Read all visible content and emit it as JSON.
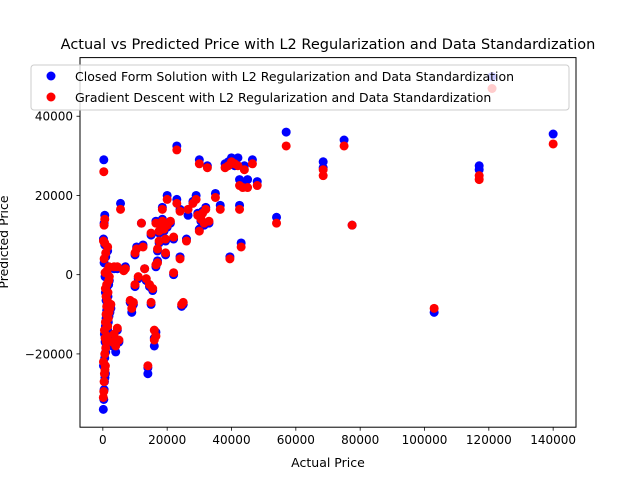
{
  "chart_data": {
    "type": "scatter",
    "title": "Actual vs Predicted Price with L2 Regularization and Data Standardization",
    "xlabel": "Actual Price",
    "ylabel": "Predicted Price",
    "xlim": [
      -7100,
      147100
    ],
    "ylim": [
      -38500,
      54800
    ],
    "xticks": [
      0,
      20000,
      40000,
      60000,
      80000,
      100000,
      120000,
      140000
    ],
    "xtick_labels": [
      "0",
      "20000",
      "40000",
      "60000",
      "80000",
      "100000",
      "120000",
      "140000"
    ],
    "yticks": [
      -20000,
      0,
      20000,
      40000
    ],
    "ytick_labels": [
      "−20000",
      "0",
      "20000",
      "40000"
    ],
    "grid": false,
    "legend_position": "top-right",
    "series": [
      {
        "name": "Closed Form Solution with L2 Regularization and Data Standardization",
        "color": "#0000ff",
        "points": [
          [
            150,
            -34000
          ],
          [
            300,
            -31500
          ],
          [
            400,
            -29000
          ],
          [
            500,
            -27000
          ],
          [
            650,
            -26000
          ],
          [
            800,
            -25000
          ],
          [
            200,
            -23000
          ],
          [
            600,
            -21000
          ],
          [
            900,
            -19500
          ],
          [
            1100,
            -18000
          ],
          [
            700,
            -17000
          ],
          [
            1300,
            -16500
          ],
          [
            500,
            -15000
          ],
          [
            1500,
            -14000
          ],
          [
            800,
            -13000
          ],
          [
            1700,
            -12000
          ],
          [
            1000,
            -11000
          ],
          [
            1900,
            -10500
          ],
          [
            2200,
            -9500
          ],
          [
            1200,
            -9000
          ],
          [
            2500,
            -8500
          ],
          [
            1400,
            -7500
          ],
          [
            1000,
            -6500
          ],
          [
            1600,
            -5500
          ],
          [
            800,
            -4500
          ],
          [
            1200,
            -3500
          ],
          [
            1800,
            -2500
          ],
          [
            2000,
            -1500
          ],
          [
            700,
            -500
          ],
          [
            1300,
            500
          ],
          [
            1900,
            1500
          ],
          [
            400,
            3000
          ],
          [
            900,
            4500
          ],
          [
            1500,
            6000
          ],
          [
            600,
            7500
          ],
          [
            200,
            9000
          ],
          [
            400,
            13000
          ],
          [
            600,
            15000
          ],
          [
            300,
            29000
          ],
          [
            3000,
            -18000
          ],
          [
            3500,
            -16000
          ],
          [
            4000,
            -19500
          ],
          [
            4500,
            -14000
          ],
          [
            5000,
            -17000
          ],
          [
            3500,
            1500
          ],
          [
            4500,
            1500
          ],
          [
            5500,
            18000
          ],
          [
            6500,
            1500
          ],
          [
            7000,
            2000
          ],
          [
            8500,
            -7000
          ],
          [
            9000,
            -9500
          ],
          [
            9500,
            -7500
          ],
          [
            10000,
            -3000
          ],
          [
            10000,
            5000
          ],
          [
            10500,
            7000
          ],
          [
            11000,
            -1000
          ],
          [
            12000,
            13000
          ],
          [
            12500,
            7500
          ],
          [
            13000,
            1500
          ],
          [
            13500,
            -1500
          ],
          [
            14000,
            -25000
          ],
          [
            14000,
            -23500
          ],
          [
            14500,
            -3000
          ],
          [
            15000,
            -7500
          ],
          [
            15500,
            -4000
          ],
          [
            15000,
            10000
          ],
          [
            16000,
            -18000
          ],
          [
            16000,
            -16000
          ],
          [
            16500,
            -14500
          ],
          [
            16500,
            2000
          ],
          [
            17000,
            3500
          ],
          [
            17000,
            6000
          ],
          [
            16500,
            13500
          ],
          [
            17500,
            8000
          ],
          [
            17500,
            10500
          ],
          [
            18000,
            12500
          ],
          [
            18500,
            14000
          ],
          [
            18500,
            17000
          ],
          [
            19000,
            11000
          ],
          [
            19500,
            5000
          ],
          [
            19500,
            8500
          ],
          [
            20000,
            12000
          ],
          [
            20000,
            20000
          ],
          [
            21000,
            13000
          ],
          [
            22000,
            9000
          ],
          [
            22000,
            0
          ],
          [
            23000,
            19000
          ],
          [
            23000,
            32500
          ],
          [
            24000,
            4500
          ],
          [
            24000,
            16500
          ],
          [
            24500,
            -8000
          ],
          [
            25000,
            -7500
          ],
          [
            26000,
            9000
          ],
          [
            26500,
            15000
          ],
          [
            28000,
            18500
          ],
          [
            29000,
            20000
          ],
          [
            29500,
            15500
          ],
          [
            30000,
            29000
          ],
          [
            30000,
            11500
          ],
          [
            30500,
            13500
          ],
          [
            31000,
            16000
          ],
          [
            31500,
            12500
          ],
          [
            32000,
            17000
          ],
          [
            32500,
            27500
          ],
          [
            33000,
            13000
          ],
          [
            35000,
            20500
          ],
          [
            36500,
            17500
          ],
          [
            38000,
            28000
          ],
          [
            39000,
            28500
          ],
          [
            39500,
            4500
          ],
          [
            40000,
            29500
          ],
          [
            41000,
            27500
          ],
          [
            42000,
            29500
          ],
          [
            42500,
            17500
          ],
          [
            42500,
            24000
          ],
          [
            43000,
            8000
          ],
          [
            43500,
            23000
          ],
          [
            44000,
            27500
          ],
          [
            45000,
            24000
          ],
          [
            46500,
            29000
          ],
          [
            48000,
            23500
          ],
          [
            54000,
            14500
          ],
          [
            57000,
            36000
          ],
          [
            68500,
            28500
          ],
          [
            68500,
            27000
          ],
          [
            75000,
            34000
          ],
          [
            77500,
            12500
          ],
          [
            103000,
            -9500
          ],
          [
            117000,
            27500
          ],
          [
            117000,
            26500
          ],
          [
            121000,
            50000
          ],
          [
            140000,
            35500
          ]
        ]
      },
      {
        "name": "Gradient Descent with L2 Regularization and Data Standardization",
        "color": "#ff0000",
        "points": [
          [
            150,
            -31000
          ],
          [
            300,
            -29500
          ],
          [
            400,
            -27000
          ],
          [
            500,
            -25000
          ],
          [
            650,
            -24000
          ],
          [
            800,
            -23000
          ],
          [
            200,
            -22000
          ],
          [
            600,
            -20000
          ],
          [
            900,
            -18500
          ],
          [
            1100,
            -17000
          ],
          [
            700,
            -16000
          ],
          [
            1300,
            -15500
          ],
          [
            500,
            -14000
          ],
          [
            1500,
            -13000
          ],
          [
            800,
            -12000
          ],
          [
            1700,
            -11000
          ],
          [
            1000,
            -10000
          ],
          [
            1900,
            -9500
          ],
          [
            2200,
            -8500
          ],
          [
            1200,
            -8000
          ],
          [
            2500,
            -7500
          ],
          [
            1400,
            -6500
          ],
          [
            1000,
            -5500
          ],
          [
            1600,
            -4500
          ],
          [
            800,
            -3500
          ],
          [
            1200,
            -2500
          ],
          [
            1800,
            -1500
          ],
          [
            2000,
            -500
          ],
          [
            700,
            500
          ],
          [
            1300,
            1000
          ],
          [
            1900,
            2000
          ],
          [
            400,
            4000
          ],
          [
            900,
            5500
          ],
          [
            1500,
            7000
          ],
          [
            600,
            8000
          ],
          [
            200,
            8500
          ],
          [
            400,
            12500
          ],
          [
            600,
            14000
          ],
          [
            300,
            26000
          ],
          [
            3000,
            -17000
          ],
          [
            3500,
            -15000
          ],
          [
            4000,
            -18000
          ],
          [
            4500,
            -13500
          ],
          [
            5000,
            -16500
          ],
          [
            3500,
            2000
          ],
          [
            4500,
            2000
          ],
          [
            5500,
            16500
          ],
          [
            6500,
            1000
          ],
          [
            7000,
            1500
          ],
          [
            8500,
            -6500
          ],
          [
            9000,
            -8500
          ],
          [
            9500,
            -7000
          ],
          [
            10000,
            -2500
          ],
          [
            10000,
            5500
          ],
          [
            10500,
            6500
          ],
          [
            11000,
            -500
          ],
          [
            12000,
            13000
          ],
          [
            12500,
            7000
          ],
          [
            13000,
            1500
          ],
          [
            13500,
            -1000
          ],
          [
            14000,
            -23000
          ],
          [
            14500,
            -2500
          ],
          [
            15000,
            -7000
          ],
          [
            15500,
            -3500
          ],
          [
            15000,
            10500
          ],
          [
            16000,
            -16500
          ],
          [
            16000,
            -14000
          ],
          [
            16500,
            -15500
          ],
          [
            16500,
            2500
          ],
          [
            17000,
            3000
          ],
          [
            17000,
            6500
          ],
          [
            16500,
            13000
          ],
          [
            17500,
            8500
          ],
          [
            17500,
            11000
          ],
          [
            18000,
            13000
          ],
          [
            18500,
            13500
          ],
          [
            18500,
            16500
          ],
          [
            19000,
            11500
          ],
          [
            19500,
            5500
          ],
          [
            19500,
            9000
          ],
          [
            20000,
            12500
          ],
          [
            20000,
            19000
          ],
          [
            21000,
            13500
          ],
          [
            22000,
            9500
          ],
          [
            22000,
            500
          ],
          [
            23000,
            18000
          ],
          [
            23000,
            31500
          ],
          [
            24000,
            4000
          ],
          [
            24000,
            16000
          ],
          [
            24500,
            -7500
          ],
          [
            25000,
            -7000
          ],
          [
            26000,
            8500
          ],
          [
            26500,
            16500
          ],
          [
            28000,
            18000
          ],
          [
            29000,
            19000
          ],
          [
            29500,
            15000
          ],
          [
            30000,
            28000
          ],
          [
            30000,
            11000
          ],
          [
            30500,
            14000
          ],
          [
            31000,
            15500
          ],
          [
            31500,
            13000
          ],
          [
            32000,
            16500
          ],
          [
            32500,
            27000
          ],
          [
            33000,
            13500
          ],
          [
            35000,
            19500
          ],
          [
            36500,
            16500
          ],
          [
            38000,
            27000
          ],
          [
            39000,
            27500
          ],
          [
            39500,
            4000
          ],
          [
            40000,
            28500
          ],
          [
            41000,
            28000
          ],
          [
            42000,
            27500
          ],
          [
            42500,
            16500
          ],
          [
            42500,
            22500
          ],
          [
            43000,
            7000
          ],
          [
            43500,
            22000
          ],
          [
            44000,
            26500
          ],
          [
            45000,
            22000
          ],
          [
            46500,
            28000
          ],
          [
            48000,
            22500
          ],
          [
            54000,
            13000
          ],
          [
            57000,
            32500
          ],
          [
            68500,
            26500
          ],
          [
            68500,
            25000
          ],
          [
            75000,
            32500
          ],
          [
            77500,
            12500
          ],
          [
            103000,
            -8500
          ],
          [
            117000,
            25000
          ],
          [
            117000,
            24000
          ],
          [
            121000,
            47000
          ],
          [
            140000,
            33000
          ]
        ]
      }
    ]
  }
}
